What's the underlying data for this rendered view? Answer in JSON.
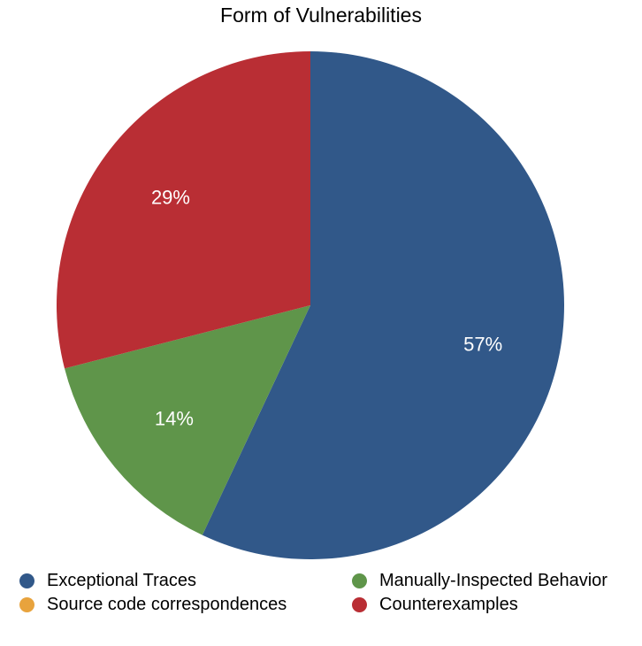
{
  "chart_data": {
    "type": "pie",
    "title": "Form of Vulnerabilities",
    "slices": [
      {
        "label": "Exceptional Traces",
        "value": 57,
        "display": "57%",
        "color": "#315889"
      },
      {
        "label": "Source code correspondences",
        "value": 0,
        "display": "",
        "color": "#e8a33d"
      },
      {
        "label": "Manually-Inspected Behavior",
        "value": 14,
        "display": "14%",
        "color": "#5f954a"
      },
      {
        "label": "Counterexamples",
        "value": 29,
        "display": "29%",
        "color": "#b92e34"
      }
    ],
    "legend_position": "bottom"
  }
}
